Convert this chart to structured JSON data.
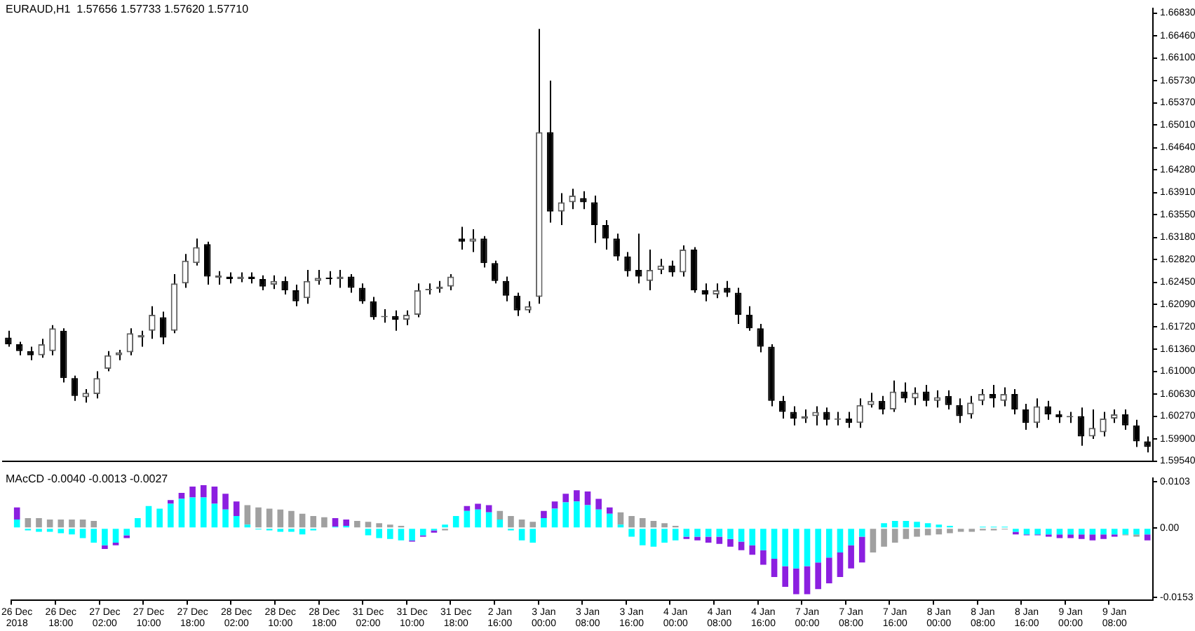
{
  "chart_data": [
    {
      "type": "candlestick",
      "title": "EURAUD,H1  1.57656 1.57733 1.57620 1.57710",
      "tick_labels": "y",
      "categories": [
        null,
        null,
        null,
        null,
        null,
        null,
        null,
        null,
        null,
        null,
        null,
        null,
        null,
        null,
        null,
        null,
        null,
        null,
        null,
        null,
        null,
        null,
        null,
        null,
        null,
        null,
        null,
        null,
        null,
        null,
        null,
        null,
        null,
        null,
        null,
        null,
        null,
        null,
        null,
        null,
        null,
        null,
        null,
        null,
        null,
        null,
        null,
        null,
        null,
        null,
        null,
        null,
        null,
        null,
        null,
        null,
        null,
        null,
        null,
        null,
        null,
        null,
        null,
        null,
        null,
        null,
        null,
        null,
        null,
        null,
        null,
        null,
        null,
        null,
        null,
        null,
        null,
        null,
        null,
        null,
        null,
        null,
        null,
        null,
        null,
        null,
        null,
        null,
        null,
        null,
        null,
        null,
        null,
        null,
        null,
        null,
        null,
        null,
        null,
        null,
        null,
        null,
        null,
        null
      ],
      "ohlc": [
        [
          1.6155,
          1.6166,
          1.614,
          1.6144
        ],
        [
          1.6144,
          1.6148,
          1.6126,
          1.6133
        ],
        [
          1.6133,
          1.614,
          1.6118,
          1.6126
        ],
        [
          1.6126,
          1.6153,
          1.6122,
          1.6144
        ],
        [
          1.6133,
          1.6175,
          1.6126,
          1.617
        ],
        [
          1.6166,
          1.617,
          1.6082,
          1.6089
        ],
        [
          1.6089,
          1.6093,
          1.6052,
          1.606
        ],
        [
          1.6058,
          1.6071,
          1.6049,
          1.6065
        ],
        [
          1.6063,
          1.61,
          1.6056,
          1.6089
        ],
        [
          1.6104,
          1.6133,
          1.61,
          1.6126
        ],
        [
          1.6126,
          1.6135,
          1.6118,
          1.6131
        ],
        [
          1.6131,
          1.617,
          1.6126,
          1.6162
        ],
        [
          1.6155,
          1.6166,
          1.614,
          1.6159
        ],
        [
          1.6166,
          1.6206,
          1.6153,
          1.6192
        ],
        [
          1.6188,
          1.6197,
          1.6144,
          1.6155
        ],
        [
          1.6166,
          1.6258,
          1.6162,
          1.6243
        ],
        [
          1.6243,
          1.6291,
          1.6236,
          1.628
        ],
        [
          1.6276,
          1.6316,
          1.6272,
          1.6302
        ],
        [
          1.6307,
          1.6311,
          1.6241,
          1.6254
        ],
        [
          1.6252,
          1.6263,
          1.6241,
          1.6256
        ],
        [
          1.6254,
          1.6261,
          1.6243,
          1.625
        ],
        [
          1.625,
          1.6261,
          1.6245,
          1.6254
        ],
        [
          1.6254,
          1.6261,
          1.6243,
          1.625
        ],
        [
          1.625,
          1.6256,
          1.6232,
          1.6238
        ],
        [
          1.6241,
          1.6256,
          1.6234,
          1.6247
        ],
        [
          1.6247,
          1.6254,
          1.6225,
          1.6232
        ],
        [
          1.6232,
          1.6241,
          1.6206,
          1.6214
        ],
        [
          1.6219,
          1.6265,
          1.621,
          1.6247
        ],
        [
          1.6247,
          1.6265,
          1.6241,
          1.6252
        ],
        [
          1.6252,
          1.6263,
          1.6241,
          1.625
        ],
        [
          1.625,
          1.6265,
          1.6236,
          1.6254
        ],
        [
          1.6254,
          1.6258,
          1.6228,
          1.6236
        ],
        [
          1.6236,
          1.6243,
          1.621,
          1.6214
        ],
        [
          1.6214,
          1.6221,
          1.6184,
          1.6188
        ],
        [
          1.6188,
          1.6201,
          1.6179,
          1.619
        ],
        [
          1.619,
          1.6199,
          1.6166,
          1.6184
        ],
        [
          1.6184,
          1.6199,
          1.6175,
          1.6192
        ],
        [
          1.6192,
          1.6243,
          1.6188,
          1.6232
        ],
        [
          1.6232,
          1.6243,
          1.6225,
          1.6234
        ],
        [
          1.6234,
          1.6247,
          1.6228,
          1.6238
        ],
        [
          1.6238,
          1.6258,
          1.6232,
          1.6254
        ],
        [
          1.6316,
          1.6335,
          1.6298,
          1.6311
        ],
        [
          1.6311,
          1.6331,
          1.6294,
          1.6316
        ],
        [
          1.6316,
          1.632,
          1.6269,
          1.6276
        ],
        [
          1.6276,
          1.628,
          1.6243,
          1.6247
        ],
        [
          1.6247,
          1.6254,
          1.6214,
          1.6223
        ],
        [
          1.6223,
          1.6228,
          1.619,
          1.6199
        ],
        [
          1.6199,
          1.6214,
          1.6195,
          1.6206
        ],
        [
          1.6221,
          1.6657,
          1.621,
          1.6489
        ],
        [
          1.6489,
          1.6573,
          1.6342,
          1.636
        ],
        [
          1.636,
          1.639,
          1.6338,
          1.6375
        ],
        [
          1.6375,
          1.6397,
          1.6364,
          1.6386
        ],
        [
          1.6382,
          1.6393,
          1.6364,
          1.6375
        ],
        [
          1.6375,
          1.6386,
          1.6309,
          1.6338
        ],
        [
          1.6338,
          1.6346,
          1.6298,
          1.6316
        ],
        [
          1.6316,
          1.6324,
          1.628,
          1.6287
        ],
        [
          1.6287,
          1.6294,
          1.6254,
          1.6263
        ],
        [
          1.6265,
          1.6324,
          1.6243,
          1.6254
        ],
        [
          1.6247,
          1.6298,
          1.6232,
          1.6265
        ],
        [
          1.6265,
          1.6283,
          1.6258,
          1.6272
        ],
        [
          1.6272,
          1.628,
          1.6254,
          1.6261
        ],
        [
          1.6261,
          1.6305,
          1.6254,
          1.6298
        ],
        [
          1.6298,
          1.6302,
          1.6228,
          1.6232
        ],
        [
          1.6232,
          1.6243,
          1.6214,
          1.6225
        ],
        [
          1.6225,
          1.6243,
          1.6219,
          1.6232
        ],
        [
          1.6236,
          1.6247,
          1.6221,
          1.6228
        ],
        [
          1.6228,
          1.6236,
          1.6177,
          1.6192
        ],
        [
          1.6192,
          1.6206,
          1.6166,
          1.617
        ],
        [
          1.617,
          1.6177,
          1.6131,
          1.614
        ],
        [
          1.614,
          1.6144,
          1.6043,
          1.6052
        ],
        [
          1.6052,
          1.606,
          1.6023,
          1.6034
        ],
        [
          1.6034,
          1.6043,
          1.6012,
          1.6023
        ],
        [
          1.6023,
          1.6038,
          1.6016,
          1.6027
        ],
        [
          1.6027,
          1.6043,
          1.6012,
          1.6034
        ],
        [
          1.6034,
          1.6041,
          1.6012,
          1.6021
        ],
        [
          1.6021,
          1.6034,
          1.6012,
          1.6023
        ],
        [
          1.6023,
          1.6034,
          1.6008,
          1.6016
        ],
        [
          1.6016,
          1.6056,
          1.6008,
          1.6045
        ],
        [
          1.6045,
          1.6065,
          1.6041,
          1.6052
        ],
        [
          1.6052,
          1.606,
          1.603,
          1.6038
        ],
        [
          1.6038,
          1.6085,
          1.6034,
          1.6067
        ],
        [
          1.6067,
          1.6082,
          1.6049,
          1.6056
        ],
        [
          1.6056,
          1.6074,
          1.6045,
          1.6065
        ],
        [
          1.6067,
          1.6078,
          1.6043,
          1.6052
        ],
        [
          1.6052,
          1.6069,
          1.6041,
          1.6058
        ],
        [
          1.606,
          1.6069,
          1.6038,
          1.6045
        ],
        [
          1.6045,
          1.6056,
          1.6016,
          1.6027
        ],
        [
          1.603,
          1.606,
          1.6023,
          1.6049
        ],
        [
          1.6052,
          1.6071,
          1.6045,
          1.6063
        ],
        [
          1.6063,
          1.6078,
          1.6041,
          1.6056
        ],
        [
          1.6052,
          1.6074,
          1.6043,
          1.6063
        ],
        [
          1.6063,
          1.6071,
          1.603,
          1.6038
        ],
        [
          1.6038,
          1.6047,
          1.6005,
          1.6016
        ],
        [
          1.6016,
          1.6056,
          1.6008,
          1.6043
        ],
        [
          1.6043,
          1.6052,
          1.6021,
          1.603
        ],
        [
          1.603,
          1.6036,
          1.6016,
          1.6025
        ],
        [
          1.6025,
          1.6034,
          1.6016,
          1.6027
        ],
        [
          1.6027,
          1.6041,
          1.5979,
          1.5994
        ],
        [
          1.5994,
          1.6038,
          1.599,
          1.6008
        ],
        [
          1.6001,
          1.6034,
          1.5994,
          1.6023
        ],
        [
          1.6023,
          1.6038,
          1.6016,
          1.603
        ],
        [
          1.603,
          1.6038,
          1.6005,
          1.6012
        ],
        [
          1.6012,
          1.6021,
          1.5977,
          1.5986
        ],
        [
          1.5986,
          1.5994,
          1.5968,
          1.5977
        ]
      ],
      "ylim": [
        1.5954,
        1.669
      ],
      "yticks": [
        {
          "value": 1.6683,
          "label": "1.66830"
        },
        {
          "value": 1.6646,
          "label": "1.66460"
        },
        {
          "value": 1.661,
          "label": "1.66100"
        },
        {
          "value": 1.6573,
          "label": "1.65730"
        },
        {
          "value": 1.6537,
          "label": "1.65370"
        },
        {
          "value": 1.6501,
          "label": "1.65010"
        },
        {
          "value": 1.6464,
          "label": "1.64640"
        },
        {
          "value": 1.6428,
          "label": "1.64280"
        },
        {
          "value": 1.6391,
          "label": "1.63910"
        },
        {
          "value": 1.6355,
          "label": "1.63550"
        },
        {
          "value": 1.6318,
          "label": "1.63180"
        },
        {
          "value": 1.6282,
          "label": "1.62820"
        },
        {
          "value": 1.6245,
          "label": "1.62450"
        },
        {
          "value": 1.6209,
          "label": "1.62090"
        },
        {
          "value": 1.6172,
          "label": "1.61720"
        },
        {
          "value": 1.6136,
          "label": "1.61360"
        },
        {
          "value": 1.61,
          "label": "1.61000"
        },
        {
          "value": 1.6063,
          "label": "1.60630"
        },
        {
          "value": 1.6027,
          "label": "1.60270"
        },
        {
          "value": 1.599,
          "label": "1.59900"
        },
        {
          "value": 1.5954,
          "label": "1.59540"
        }
      ]
    },
    {
      "type": "bar",
      "title": "MAcCD -0.0040 -0.0013 -0.0027",
      "stacked": true,
      "categories": [
        "26 Dec 2018",
        null,
        null,
        null,
        "26 Dec 18:00",
        null,
        null,
        null,
        "27 Dec 02:00",
        null,
        null,
        null,
        "27 Dec 10:00",
        null,
        null,
        null,
        "27 Dec 18:00",
        null,
        null,
        null,
        "28 Dec 02:00",
        null,
        null,
        null,
        "28 Dec 10:00",
        null,
        null,
        null,
        "28 Dec 18:00",
        null,
        null,
        null,
        "31 Dec 02:00",
        null,
        null,
        null,
        "31 Dec 10:00",
        null,
        null,
        null,
        "31 Dec 18:00",
        null,
        null,
        null,
        "2 Jan 16:00",
        null,
        null,
        null,
        "3 Jan 00:00",
        null,
        null,
        null,
        "3 Jan 08:00",
        null,
        null,
        null,
        "3 Jan 16:00",
        null,
        null,
        null,
        "4 Jan 00:00",
        null,
        null,
        null,
        "4 Jan 08:00",
        null,
        null,
        null,
        "4 Jan 16:00",
        null,
        null,
        null,
        "7 Jan 00:00",
        null,
        null,
        null,
        "7 Jan 08:00",
        null,
        null,
        null,
        "7 Jan 16:00",
        null,
        null,
        null,
        "8 Jan 00:00",
        null,
        null,
        null,
        "8 Jan 08:00",
        null,
        null,
        null,
        "8 Jan 16:00",
        null,
        null,
        null,
        "9 Jan 00:00",
        null,
        null,
        null,
        "9 Jan 08:00",
        null,
        null,
        null
      ],
      "series": [
        {
          "color": "#00ffff",
          "values": [
            0.0019,
            -0.0005,
            -0.0008,
            -0.0008,
            -0.0011,
            -0.0014,
            -0.0022,
            -0.0032,
            -0.0038,
            -0.0032,
            -0.0016,
            0.0022,
            0.0049,
            0.0043,
            0.0054,
            0.0065,
            0.0068,
            0.0068,
            0.0054,
            0.0041,
            0.0027,
            0.0008,
            -0.0003,
            -0.0005,
            -0.0008,
            -0.0008,
            -0.0014,
            -0.0005,
            0,
            0.0003,
            0.0005,
            0,
            -0.0016,
            -0.0022,
            -0.0024,
            -0.0027,
            -0.0027,
            -0.0016,
            -0.0005,
            0.0008,
            0.0027,
            0.0038,
            0.0041,
            0.0035,
            0.0019,
            -0.0005,
            -0.0027,
            -0.0032,
            0.0022,
            0.0043,
            0.0057,
            0.0059,
            0.0051,
            0.0041,
            0.0032,
            0.0008,
            -0.0019,
            -0.0038,
            -0.0041,
            -0.0032,
            -0.0027,
            -0.0019,
            -0.0019,
            -0.0019,
            -0.0019,
            -0.0024,
            -0.003,
            -0.0038,
            -0.0049,
            -0.0068,
            -0.0084,
            -0.0089,
            -0.0084,
            -0.0076,
            -0.0065,
            -0.0054,
            -0.0038,
            -0.0019,
            0,
            0.0011,
            0.0016,
            0.0016,
            0.0014,
            0.0011,
            0.0008,
            0.0005,
            0,
            0,
            0.0003,
            0.0003,
            0.0003,
            -0.0008,
            -0.0014,
            -0.0014,
            -0.0014,
            -0.0014,
            -0.0014,
            -0.0014,
            -0.0014,
            -0.0014,
            -0.0014,
            -0.0014,
            -0.0014,
            -0.0014
          ]
        },
        {
          "colors": [
            "#8b1fe0",
            "#a0a0a0",
            "#a0a0a0",
            "#a0a0a0",
            "#a0a0a0",
            "#a0a0a0",
            "#a0a0a0",
            "#a0a0a0",
            "#8b1fe0",
            "#8b1fe0",
            "#8b1fe0",
            "#a0a0a0",
            "#a0a0a0",
            "#a0a0a0",
            "#8b1fe0",
            "#8b1fe0",
            "#8b1fe0",
            "#8b1fe0",
            "#8b1fe0",
            "#8b1fe0",
            "#8b1fe0",
            "#a0a0a0",
            "#a0a0a0",
            "#a0a0a0",
            "#a0a0a0",
            "#a0a0a0",
            "#a0a0a0",
            "#a0a0a0",
            "#a0a0a0",
            "#8b1fe0",
            "#8b1fe0",
            "#a0a0a0",
            "#a0a0a0",
            "#a0a0a0",
            "#a0a0a0",
            "#a0a0a0",
            "#8b1fe0",
            "#8b1fe0",
            "#8b1fe0",
            "#a0a0a0",
            "#a0a0a0",
            "#8b1fe0",
            "#8b1fe0",
            "#8b1fe0",
            "#a0a0a0",
            "#a0a0a0",
            "#a0a0a0",
            "#a0a0a0",
            "#8b1fe0",
            "#8b1fe0",
            "#8b1fe0",
            "#8b1fe0",
            "#8b1fe0",
            "#8b1fe0",
            "#8b1fe0",
            "#a0a0a0",
            "#a0a0a0",
            "#a0a0a0",
            "#a0a0a0",
            "#a0a0a0",
            "#a0a0a0",
            "#8b1fe0",
            "#8b1fe0",
            "#8b1fe0",
            "#8b1fe0",
            "#8b1fe0",
            "#8b1fe0",
            "#8b1fe0",
            "#8b1fe0",
            "#8b1fe0",
            "#8b1fe0",
            "#8b1fe0",
            "#8b1fe0",
            "#8b1fe0",
            "#8b1fe0",
            "#8b1fe0",
            "#8b1fe0",
            "#8b1fe0",
            "#a0a0a0",
            "#a0a0a0",
            "#a0a0a0",
            "#a0a0a0",
            "#a0a0a0",
            "#a0a0a0",
            "#a0a0a0",
            "#a0a0a0",
            "#a0a0a0",
            "#a0a0a0",
            "#a0a0a0",
            "#a0a0a0",
            "#a0a0a0",
            "#8b1fe0",
            "#8b1fe0",
            "#8b1fe0",
            "#8b1fe0",
            "#8b1fe0",
            "#8b1fe0",
            "#8b1fe0",
            "#8b1fe0",
            "#8b1fe0",
            "#8b1fe0",
            "#a0a0a0",
            "#a0a0a0",
            "#8b1fe0"
          ],
          "values": [
            0.0027,
            0.0022,
            0.0022,
            0.0019,
            0.0019,
            0.0019,
            0.0019,
            0.0016,
            -0.0008,
            -0.0006,
            -0.0006,
            null,
            null,
            null,
            0.0008,
            0.0013,
            0.0024,
            0.0027,
            0.0038,
            0.0035,
            0.0032,
            0.0043,
            0.0046,
            0.0043,
            0.0041,
            0.0038,
            0.0032,
            0.0027,
            0.0024,
            0.0019,
            0.0014,
            0.0016,
            0.0014,
            0.0011,
            0.0008,
            0.0005,
            -0.0003,
            -0.0003,
            -0.0005,
            -0.0005,
            null,
            0.0011,
            0.0013,
            0.0016,
            0.0019,
            0.0027,
            0.0019,
            0.0014,
            0.0016,
            0.0016,
            0.0019,
            0.0025,
            0.003,
            0.0024,
            0.0014,
            0.0027,
            0.0027,
            0.0022,
            0.0016,
            0.0011,
            0.0005,
            -0.0005,
            -0.0008,
            -0.0013,
            -0.0016,
            -0.0017,
            -0.0019,
            -0.0021,
            -0.0032,
            -0.004,
            -0.0046,
            -0.0057,
            -0.0062,
            -0.0059,
            -0.0057,
            -0.0054,
            -0.0051,
            -0.0057,
            -0.0054,
            -0.0041,
            -0.0032,
            -0.0024,
            -0.0019,
            -0.0016,
            -0.0014,
            -0.0011,
            -0.0008,
            -0.0008,
            -0.0005,
            -0.0005,
            -0.0003,
            -0.0006,
            -0.0002,
            -0.0002,
            -0.0005,
            -0.0008,
            -0.0008,
            -0.001,
            -0.0013,
            -0.001,
            -0.0005,
            -0.0002,
            -0.0005,
            -0.0013
          ]
        }
      ],
      "ylim": [
        -0.016,
        0.011
      ],
      "yticks": [
        0.0103,
        {
          "value": 0,
          "label": "0.00"
        },
        -0.0153
      ]
    }
  ]
}
